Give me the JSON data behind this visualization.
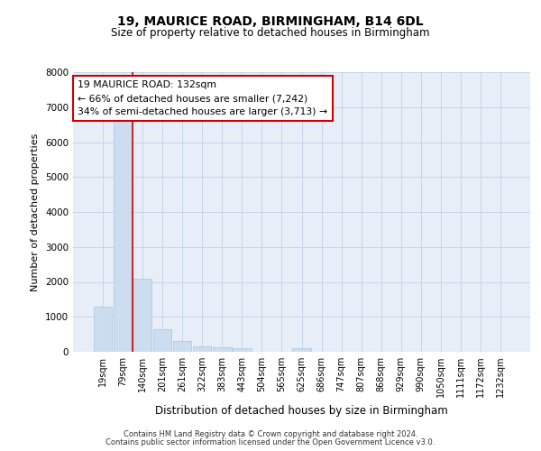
{
  "title1": "19, MAURICE ROAD, BIRMINGHAM, B14 6DL",
  "title2": "Size of property relative to detached houses in Birmingham",
  "xlabel": "Distribution of detached houses by size in Birmingham",
  "ylabel": "Number of detached properties",
  "categories": [
    "19sqm",
    "79sqm",
    "140sqm",
    "201sqm",
    "261sqm",
    "322sqm",
    "383sqm",
    "443sqm",
    "504sqm",
    "565sqm",
    "625sqm",
    "686sqm",
    "747sqm",
    "807sqm",
    "868sqm",
    "929sqm",
    "990sqm",
    "1050sqm",
    "1111sqm",
    "1172sqm",
    "1232sqm"
  ],
  "values": [
    1300,
    6600,
    2100,
    650,
    300,
    150,
    130,
    100,
    0,
    0,
    100,
    0,
    0,
    0,
    0,
    0,
    0,
    0,
    0,
    0,
    0
  ],
  "bar_color": "#ccddf0",
  "bar_edge_color": "#a8c4e0",
  "property_line_color": "#cc0000",
  "annotation_text": "19 MAURICE ROAD: 132sqm\n← 66% of detached houses are smaller (7,242)\n34% of semi-detached houses are larger (3,713) →",
  "annotation_box_facecolor": "#ffffff",
  "annotation_box_edgecolor": "#cc0000",
  "ylim": [
    0,
    8000
  ],
  "yticks": [
    0,
    1000,
    2000,
    3000,
    4000,
    5000,
    6000,
    7000,
    8000
  ],
  "grid_color": "#c8d4e8",
  "plot_background": "#e8eef8",
  "footer1": "Contains HM Land Registry data © Crown copyright and database right 2024.",
  "footer2": "Contains public sector information licensed under the Open Government Licence v3.0."
}
